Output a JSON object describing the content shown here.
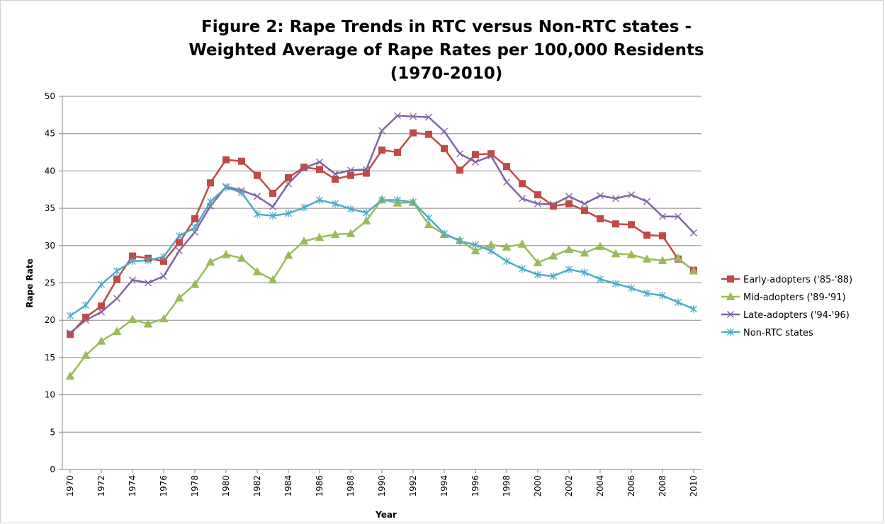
{
  "chart_data": {
    "type": "line",
    "title": [
      "Figure 2: Rape Trends in RTC versus Non-RTC states -",
      "Weighted Average of Rape Rates per 100,000 Residents",
      "(1970-2010)"
    ],
    "x_label": "Year",
    "y_label": "Rape Rate",
    "x": [
      1970,
      1971,
      1972,
      1973,
      1974,
      1975,
      1976,
      1977,
      1978,
      1979,
      1980,
      1981,
      1982,
      1983,
      1984,
      1985,
      1986,
      1987,
      1988,
      1989,
      1990,
      1991,
      1992,
      1993,
      1994,
      1995,
      1996,
      1997,
      1998,
      1999,
      2000,
      2001,
      2002,
      2003,
      2004,
      2005,
      2006,
      2007,
      2008,
      2009,
      2010
    ],
    "xlim": [
      1969.5,
      2010.5
    ],
    "xticks": [
      1970,
      1972,
      1974,
      1976,
      1978,
      1980,
      1982,
      1984,
      1986,
      1988,
      1990,
      1992,
      1994,
      1996,
      1998,
      2000,
      2002,
      2004,
      2006,
      2008,
      2010
    ],
    "ylim": [
      0,
      50
    ],
    "yticks": [
      0,
      5,
      10,
      15,
      20,
      25,
      30,
      35,
      40,
      45,
      50
    ],
    "grid": true,
    "legend": "right",
    "series": [
      {
        "name": "Early-adopters ('85-'88)",
        "color": "#be4b48",
        "marker": "square",
        "values": [
          18.1,
          20.4,
          21.9,
          25.5,
          28.6,
          28.3,
          27.9,
          30.4,
          33.6,
          38.4,
          41.5,
          41.3,
          39.4,
          37.0,
          39.1,
          40.5,
          40.2,
          38.9,
          39.4,
          39.7,
          42.8,
          42.5,
          45.1,
          44.9,
          43.0,
          40.1,
          42.2,
          42.3,
          40.6,
          38.3,
          36.8,
          35.3,
          35.6,
          34.7,
          33.6,
          32.9,
          32.8,
          31.4,
          31.3,
          28.2,
          26.7
        ]
      },
      {
        "name": "Mid-adopters ('89-'91)",
        "color": "#9bbb59",
        "marker": "triangle",
        "values": [
          12.5,
          15.3,
          17.2,
          18.5,
          20.1,
          19.5,
          20.2,
          23.0,
          24.8,
          27.8,
          28.8,
          28.3,
          26.5,
          25.4,
          28.7,
          30.6,
          31.1,
          31.5,
          31.6,
          33.3,
          36.2,
          35.7,
          35.8,
          32.8,
          31.5,
          30.7,
          29.3,
          30.1,
          29.8,
          30.2,
          27.7,
          28.6,
          29.5,
          29.0,
          29.9,
          28.9,
          28.8,
          28.2,
          28.0,
          28.3,
          26.6
        ]
      },
      {
        "name": "Late-adopters ('94-'96)",
        "color": "#8064a2",
        "marker": "x",
        "values": [
          18.3,
          20.0,
          21.1,
          22.9,
          25.4,
          25.0,
          25.9,
          29.3,
          31.8,
          35.3,
          37.9,
          37.4,
          36.6,
          35.2,
          38.3,
          40.4,
          41.2,
          39.6,
          40.1,
          40.2,
          45.4,
          47.4,
          47.3,
          47.2,
          45.3,
          42.3,
          41.2,
          42.0,
          38.5,
          36.3,
          35.6,
          35.5,
          36.6,
          35.6,
          36.7,
          36.3,
          36.8,
          35.9,
          33.9,
          33.9,
          31.7
        ]
      },
      {
        "name": "Non-RTC states",
        "color": "#4bacc6",
        "marker": "star",
        "values": [
          20.6,
          22.0,
          24.8,
          26.6,
          27.9,
          28.0,
          28.5,
          31.3,
          32.4,
          35.9,
          37.8,
          37.1,
          34.2,
          34.0,
          34.3,
          35.1,
          36.1,
          35.6,
          34.9,
          34.4,
          36.1,
          36.1,
          35.8,
          33.7,
          31.6,
          30.6,
          30.1,
          29.3,
          27.9,
          26.9,
          26.1,
          25.9,
          26.8,
          26.4,
          25.5,
          24.9,
          24.3,
          23.6,
          23.3,
          22.4,
          21.5
        ]
      }
    ]
  }
}
